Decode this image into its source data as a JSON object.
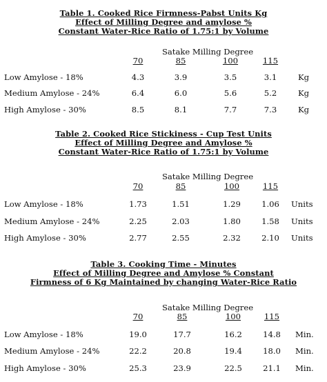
{
  "tables": [
    {
      "title_lines": [
        "Table 1. Cooked Rice Firmness-Pabst Units Kg",
        "Effect of Milling Degree and amylose %",
        "Constant Water-Rice Ratio of 1.75:1 by Volume"
      ],
      "header": "Satake Milling Degree",
      "columns": [
        "70",
        "85",
        "100",
        "115"
      ],
      "rows": [
        {
          "label": "Low Amylose - 18%",
          "values": [
            "4.3",
            "3.9",
            "3.5",
            "3.1"
          ],
          "unit": "Kg"
        },
        {
          "label": "Medium Amylose - 24%",
          "values": [
            "6.4",
            "6.0",
            "5.6",
            "5.2"
          ],
          "unit": "Kg"
        },
        {
          "label": "High Amylose - 30%",
          "values": [
            "8.5",
            "8.1",
            "7.7",
            "7.3"
          ],
          "unit": "Kg"
        }
      ]
    },
    {
      "title_lines": [
        "Table 2. Cooked Rice Stickiness - Cup Test Units",
        "Effect of Milling Degree and Amylose %",
        "Constant Water-Rice Ratio of 1.75:1 by Volume"
      ],
      "header": "Satake Milling Degree",
      "columns": [
        "70",
        "85",
        "100",
        "115"
      ],
      "rows": [
        {
          "label": "Low Amylose - 18%",
          "values": [
            "1.73",
            "1.51",
            "1.29",
            "1.06"
          ],
          "unit": "Units"
        },
        {
          "label": "Medium Amylose - 24%",
          "values": [
            "2.25",
            "2.03",
            "1.80",
            "1.58"
          ],
          "unit": "Units"
        },
        {
          "label": "High Amylose - 30%",
          "values": [
            "2.77",
            "2.55",
            "2.32",
            "2.10"
          ],
          "unit": "Units"
        }
      ]
    },
    {
      "title_lines": [
        "Table 3. Cooking Time - Minutes",
        "Effect of Milling Degree and Amylose % Constant",
        "Firmness of 6 Kg Maintained by changing Water-Rice Ratio"
      ],
      "header": "Satake Milling Degree",
      "columns": [
        "70",
        "85",
        "100",
        "115"
      ],
      "rows": [
        {
          "label": "Low Amylose - 18%",
          "values": [
            "19.0",
            "17.7",
            "16.2",
            "14.8"
          ],
          "unit": "Min."
        },
        {
          "label": "Medium Amylose - 24%",
          "values": [
            "22.2",
            "20.8",
            "19.4",
            "18.0"
          ],
          "unit": "Min."
        },
        {
          "label": "High Amylose - 30%",
          "values": [
            "25.3",
            "23.9",
            "22.5",
            "21.1"
          ],
          "unit": "Min."
        }
      ]
    }
  ]
}
